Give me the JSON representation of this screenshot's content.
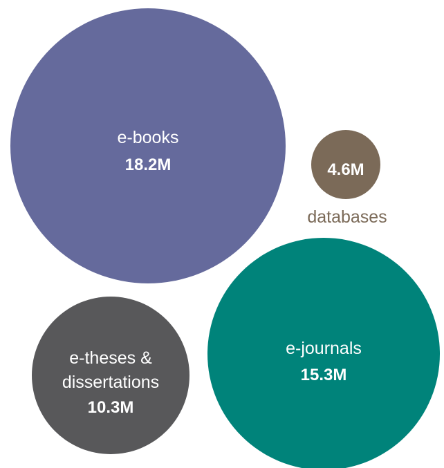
{
  "chart_data": {
    "type": "bubble",
    "unit": "M",
    "items": [
      {
        "name_lines": [
          "e-books"
        ],
        "value": 18.2,
        "value_label": "18.2M",
        "color": "#656a9c"
      },
      {
        "name_lines": [
          "databases"
        ],
        "value": 4.6,
        "value_label": "4.6M",
        "color": "#7b6a58"
      },
      {
        "name_lines": [
          "e-journals"
        ],
        "value": 15.3,
        "value_label": "15.3M",
        "color": "#00837a"
      },
      {
        "name_lines": [
          "e-theses &",
          "dissertations"
        ],
        "value": 10.3,
        "value_label": "10.3M",
        "color": "#58585a"
      }
    ]
  }
}
